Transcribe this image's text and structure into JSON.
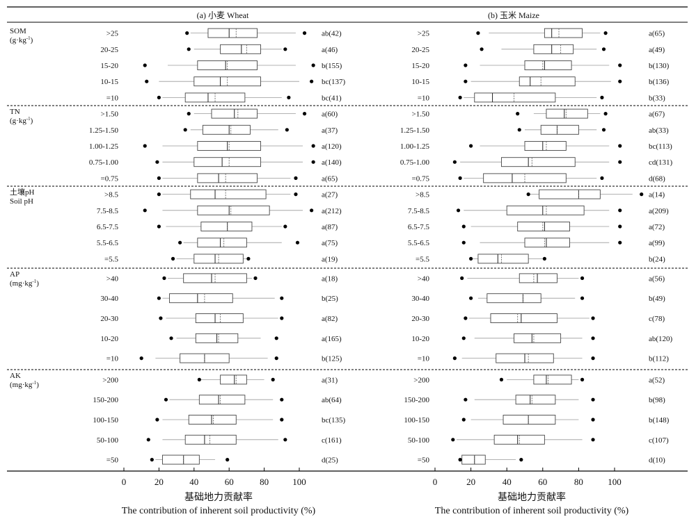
{
  "chart_data": {
    "type": "boxplot",
    "orientation": "horizontal",
    "x_axis": {
      "ticks": [
        0,
        20,
        40,
        60,
        80,
        100
      ],
      "label_zh": "基础地力贡献率",
      "label_en": "The contribution of inherent soil productivity (%)"
    },
    "groups": [
      {
        "key": "som",
        "label": "SOM",
        "unit_base": "(g·kg",
        "unit_sup": "-1",
        "unit_tail": ")",
        "levels": [
          ">25",
          "20-25",
          "15-20",
          "10-15",
          "=10"
        ]
      },
      {
        "key": "tn",
        "label": "TN",
        "unit_base": "(g·kg",
        "unit_sup": "-1",
        "unit_tail": ")",
        "levels": [
          ">1.50",
          "1.25-1.50",
          "1.00-1.25",
          "0.75-1.00",
          "=0.75"
        ]
      },
      {
        "key": "ph",
        "label": "土壤pH",
        "unit_base": "Soil pH",
        "unit_sup": "",
        "unit_tail": "",
        "levels": [
          ">8.5",
          "7.5-8.5",
          "6.5-7.5",
          "5.5-6.5",
          "=5.5"
        ]
      },
      {
        "key": "ap",
        "label": "AP",
        "unit_base": "(mg·kg",
        "unit_sup": "-1",
        "unit_tail": ")",
        "levels": [
          ">40",
          "30-40",
          "20-30",
          "10-20",
          "=10"
        ]
      },
      {
        "key": "ak",
        "label": "AK",
        "unit_base": "(mg·kg",
        "unit_sup": "-1",
        "unit_tail": ")",
        "levels": [
          ">200",
          "150-200",
          "100-150",
          "50-100",
          "=50"
        ]
      }
    ],
    "panels": [
      {
        "title": "(a) 小麦 Wheat",
        "boxes": [
          [
            {
              "q1": 48,
              "med": 60,
              "q3": 76,
              "mean": 64,
              "wlo": 38,
              "whi": 98,
              "olo": 36,
              "ohi": 103,
              "sig": "ab(42)"
            },
            {
              "q1": 55,
              "med": 67,
              "q3": 78,
              "mean": 70,
              "wlo": 40,
              "whi": 90,
              "olo": 37,
              "ohi": 92,
              "sig": "a(46)"
            },
            {
              "q1": 42,
              "med": 58,
              "q3": 76,
              "mean": 59,
              "wlo": 25,
              "whi": 98,
              "olo": 12,
              "ohi": 108,
              "sig": "b(155)"
            },
            {
              "q1": 40,
              "med": 55,
              "q3": 78,
              "mean": 59,
              "wlo": 20,
              "whi": 100,
              "olo": 13,
              "ohi": 107,
              "sig": "bc(137)"
            },
            {
              "q1": 35,
              "med": 48,
              "q3": 69,
              "mean": 52,
              "wlo": 22,
              "whi": 90,
              "olo": 20,
              "ohi": 94,
              "sig": "bc(41)"
            }
          ],
          [
            {
              "q1": 50,
              "med": 63,
              "q3": 76,
              "mean": 65,
              "wlo": 40,
              "whi": 98,
              "olo": 37,
              "ohi": 103,
              "sig": "a(60)"
            },
            {
              "q1": 45,
              "med": 60,
              "q3": 72,
              "mean": 61,
              "wlo": 38,
              "whi": 88,
              "olo": 35,
              "ohi": 93,
              "sig": "a(37)"
            },
            {
              "q1": 42,
              "med": 59,
              "q3": 78,
              "mean": 60,
              "wlo": 22,
              "whi": 102,
              "olo": 12,
              "ohi": 108,
              "sig": "a(120)"
            },
            {
              "q1": 40,
              "med": 56,
              "q3": 78,
              "mean": 60,
              "wlo": 22,
              "whi": 102,
              "olo": 19,
              "ohi": 108,
              "sig": "a(140)"
            },
            {
              "q1": 42,
              "med": 54,
              "q3": 76,
              "mean": 58,
              "wlo": 22,
              "whi": 95,
              "olo": 20,
              "ohi": 98,
              "sig": "a(65)"
            }
          ],
          [
            {
              "q1": 38,
              "med": 52,
              "q3": 81,
              "mean": 58,
              "wlo": 22,
              "whi": 95,
              "olo": 20,
              "ohi": 98,
              "sig": "a(27)"
            },
            {
              "q1": 42,
              "med": 60,
              "q3": 83,
              "mean": 61,
              "wlo": 22,
              "whi": 102,
              "olo": 12,
              "ohi": 107,
              "sig": "a(212)"
            },
            {
              "q1": 44,
              "med": 59,
              "q3": 73,
              "mean": 59,
              "wlo": 24,
              "whi": 90,
              "olo": 20,
              "ohi": 92,
              "sig": "a(87)"
            },
            {
              "q1": 42,
              "med": 55,
              "q3": 70,
              "mean": 57,
              "wlo": 34,
              "whi": 90,
              "olo": 32,
              "ohi": 99,
              "sig": "a(75)"
            },
            {
              "q1": 40,
              "med": 52,
              "q3": 68,
              "mean": 54,
              "wlo": 30,
              "whi": 70,
              "olo": 28,
              "ohi": 71,
              "sig": "a(19)"
            }
          ],
          [
            {
              "q1": 34,
              "med": 50,
              "q3": 70,
              "mean": 52,
              "wlo": 25,
              "whi": 73,
              "olo": 23,
              "ohi": 75,
              "sig": "a(18)"
            },
            {
              "q1": 26,
              "med": 42,
              "q3": 62,
              "mean": 46,
              "wlo": 22,
              "whi": 86,
              "olo": 20,
              "ohi": 90,
              "sig": "b(25)"
            },
            {
              "q1": 41,
              "med": 52,
              "q3": 68,
              "mean": 55,
              "wlo": 24,
              "whi": 88,
              "olo": 21,
              "ohi": 90,
              "sig": "a(82)"
            },
            {
              "q1": 41,
              "med": 53,
              "q3": 65,
              "mean": 54,
              "wlo": 30,
              "whi": 78,
              "olo": 27,
              "ohi": 87,
              "sig": "a(165)"
            },
            {
              "q1": 32,
              "med": 46,
              "q3": 60,
              "mean": 46,
              "wlo": 18,
              "whi": 82,
              "olo": 10,
              "ohi": 87,
              "sig": "b(125)"
            }
          ],
          [
            {
              "q1": 55,
              "med": 63,
              "q3": 70,
              "mean": 64,
              "wlo": 44,
              "whi": 80,
              "olo": 43,
              "ohi": 85,
              "sig": "a(31)"
            },
            {
              "q1": 43,
              "med": 54,
              "q3": 69,
              "mean": 55,
              "wlo": 26,
              "whi": 85,
              "olo": 24,
              "ohi": 90,
              "sig": "ab(64)"
            },
            {
              "q1": 37,
              "med": 50,
              "q3": 64,
              "mean": 51,
              "wlo": 22,
              "whi": 85,
              "olo": 19,
              "ohi": 90,
              "sig": "bc(135)"
            },
            {
              "q1": 35,
              "med": 46,
              "q3": 64,
              "mean": 49,
              "wlo": 22,
              "whi": 88,
              "olo": 14,
              "ohi": 92,
              "sig": "c(161)"
            },
            {
              "q1": 22,
              "med": 34,
              "q3": 43,
              "mean": 34,
              "wlo": 18,
              "whi": 52,
              "olo": 16,
              "ohi": 59,
              "sig": "d(25)"
            }
          ]
        ]
      },
      {
        "title": "(b) 玉米 Maize",
        "boxes": [
          [
            {
              "q1": 61,
              "med": 65,
              "q3": 82,
              "mean": 69,
              "wlo": 30,
              "whi": 92,
              "olo": 24,
              "ohi": 95,
              "sig": "a(65)"
            },
            {
              "q1": 55,
              "med": 65,
              "q3": 77,
              "mean": 70,
              "wlo": 37,
              "whi": 90,
              "olo": 26,
              "ohi": 94,
              "sig": "a(49)"
            },
            {
              "q1": 50,
              "med": 61,
              "q3": 76,
              "mean": 60,
              "wlo": 25,
              "whi": 97,
              "olo": 17,
              "ohi": 103,
              "sig": "b(130)"
            },
            {
              "q1": 47,
              "med": 53,
              "q3": 78,
              "mean": 59,
              "wlo": 20,
              "whi": 98,
              "olo": 17,
              "ohi": 103,
              "sig": "b(136)"
            },
            {
              "q1": 22,
              "med": 32,
              "q3": 67,
              "mean": 44,
              "wlo": 16,
              "whi": 90,
              "olo": 14,
              "ohi": 93,
              "sig": "b(33)"
            }
          ],
          [
            {
              "q1": 62,
              "med": 72,
              "q3": 85,
              "mean": 73,
              "wlo": 55,
              "whi": 92,
              "olo": 46,
              "ohi": 95,
              "sig": "a(67)"
            },
            {
              "q1": 59,
              "med": 68,
              "q3": 80,
              "mean": 68,
              "wlo": 50,
              "whi": 90,
              "olo": 47,
              "ohi": 94,
              "sig": "ab(33)"
            },
            {
              "q1": 50,
              "med": 60,
              "q3": 73,
              "mean": 62,
              "wlo": 25,
              "whi": 97,
              "olo": 20,
              "ohi": 103,
              "sig": "bc(113)"
            },
            {
              "q1": 37,
              "med": 52,
              "q3": 78,
              "mean": 54,
              "wlo": 14,
              "whi": 97,
              "olo": 11,
              "ohi": 103,
              "sig": "cd(131)"
            },
            {
              "q1": 27,
              "med": 43,
              "q3": 73,
              "mean": 50,
              "wlo": 16,
              "whi": 90,
              "olo": 14,
              "ohi": 93,
              "sig": "d(68)"
            }
          ],
          [
            {
              "q1": 58,
              "med": 80,
              "q3": 92,
              "mean": 80,
              "wlo": 53,
              "whi": 110,
              "olo": 52,
              "ohi": 115,
              "sig": "a(14)"
            },
            {
              "q1": 40,
              "med": 60,
              "q3": 83,
              "mean": 62,
              "wlo": 16,
              "whi": 97,
              "olo": 13,
              "ohi": 103,
              "sig": "a(209)"
            },
            {
              "q1": 46,
              "med": 61,
              "q3": 75,
              "mean": 60,
              "wlo": 20,
              "whi": 97,
              "olo": 16,
              "ohi": 103,
              "sig": "a(72)"
            },
            {
              "q1": 50,
              "med": 62,
              "q3": 75,
              "mean": 61,
              "wlo": 25,
              "whi": 97,
              "olo": 16,
              "ohi": 103,
              "sig": "a(99)"
            },
            {
              "q1": 24,
              "med": 35,
              "q3": 52,
              "mean": 37,
              "wlo": 21,
              "whi": 60,
              "olo": 20,
              "ohi": 61,
              "sig": "b(24)"
            }
          ],
          [
            {
              "q1": 47,
              "med": 57,
              "q3": 68,
              "mean": 55,
              "wlo": 18,
              "whi": 80,
              "olo": 15,
              "ohi": 82,
              "sig": "a(56)"
            },
            {
              "q1": 29,
              "med": 49,
              "q3": 59,
              "mean": 49,
              "wlo": 24,
              "whi": 78,
              "olo": 20,
              "ohi": 82,
              "sig": "b(49)"
            },
            {
              "q1": 31,
              "med": 48,
              "q3": 68,
              "mean": 46,
              "wlo": 19,
              "whi": 86,
              "olo": 17,
              "ohi": 88,
              "sig": "c(78)"
            },
            {
              "q1": 44,
              "med": 54,
              "q3": 70,
              "mean": 55,
              "wlo": 22,
              "whi": 82,
              "olo": 16,
              "ohi": 88,
              "sig": "ab(120)"
            },
            {
              "q1": 34,
              "med": 50,
              "q3": 66,
              "mean": 52,
              "wlo": 15,
              "whi": 82,
              "olo": 11,
              "ohi": 88,
              "sig": "b(112)"
            }
          ],
          [
            {
              "q1": 55,
              "med": 62,
              "q3": 76,
              "mean": 63,
              "wlo": 40,
              "whi": 80,
              "olo": 37,
              "ohi": 82,
              "sig": "a(52)"
            },
            {
              "q1": 45,
              "med": 53,
              "q3": 67,
              "mean": 54,
              "wlo": 22,
              "whi": 80,
              "olo": 17,
              "ohi": 88,
              "sig": "b(98)"
            },
            {
              "q1": 38,
              "med": 52,
              "q3": 67,
              "mean": 52,
              "wlo": 20,
              "whi": 80,
              "olo": 16,
              "ohi": 88,
              "sig": "b(148)"
            },
            {
              "q1": 33,
              "med": 46,
              "q3": 61,
              "mean": 47,
              "wlo": 12,
              "whi": 82,
              "olo": 10,
              "ohi": 88,
              "sig": "c(107)"
            },
            {
              "q1": 15,
              "med": 22,
              "q3": 28,
              "mean": 22,
              "wlo": 15,
              "whi": 45,
              "olo": 14,
              "ohi": 48,
              "sig": "d(10)"
            }
          ]
        ]
      }
    ]
  }
}
